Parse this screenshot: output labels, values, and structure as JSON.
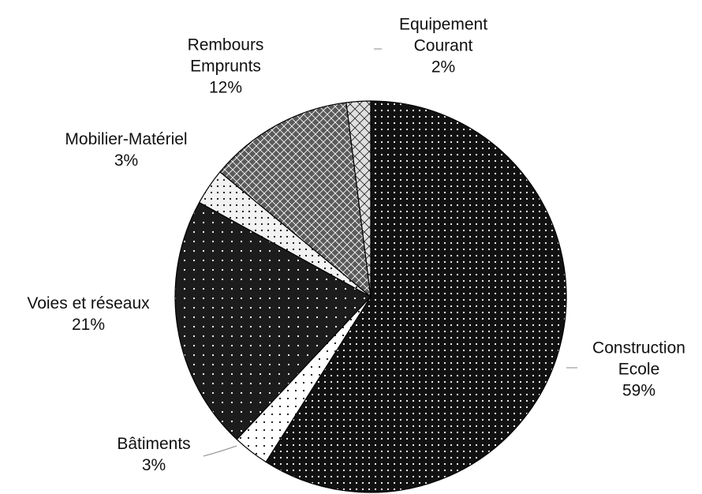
{
  "chart_data": {
    "type": "pie",
    "categories": [
      "Construction Ecole",
      "Bâtiments",
      "Voies et réseaux",
      "Mobilier-Matériel",
      "Rembours Emprunts",
      "Equipement Courant"
    ],
    "values": [
      59,
      3,
      21,
      3,
      12,
      2
    ],
    "value_labels": [
      "59%",
      "3%",
      "21%",
      "3%",
      "12%",
      "2%"
    ],
    "colors": [
      "#111111",
      "#ffffff",
      "#1c1c1c",
      "#f2f2f2",
      "#5a5a5a",
      "#e0e0e0"
    ]
  }
}
